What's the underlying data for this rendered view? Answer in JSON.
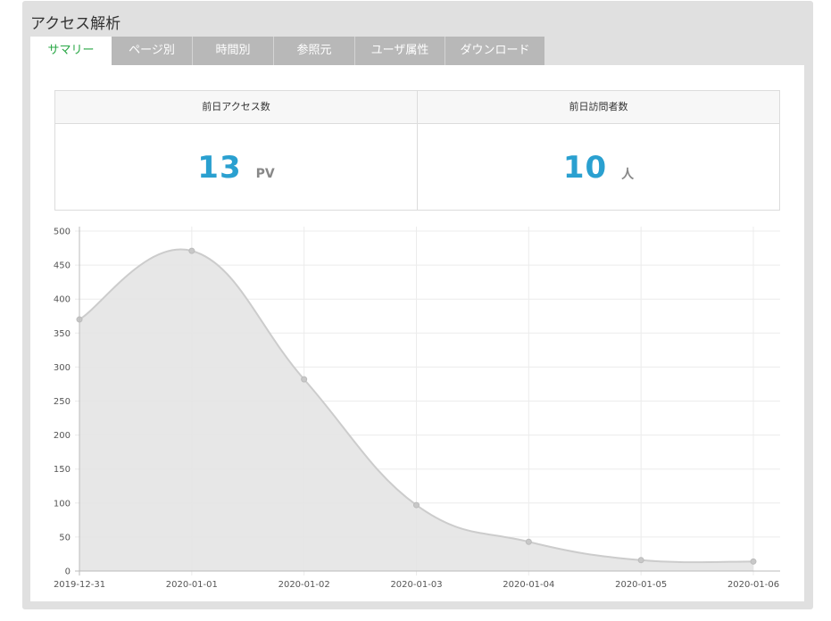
{
  "panel": {
    "title": "アクセス解析"
  },
  "tabs": [
    {
      "label": "サマリー",
      "active": true
    },
    {
      "label": "ページ別",
      "active": false
    },
    {
      "label": "時間別",
      "active": false
    },
    {
      "label": "参照元",
      "active": false
    },
    {
      "label": "ユーザ属性",
      "active": false
    },
    {
      "label": "ダウンロード",
      "active": false
    }
  ],
  "cards": [
    {
      "label": "前日アクセス数",
      "value": "13",
      "unit": "PV"
    },
    {
      "label": "前日訪問者数",
      "value": "10",
      "unit": "人"
    }
  ],
  "colors": {
    "accent_value": "#2aa0d0",
    "active_tab": "#28a745",
    "area_fill": "#e4e4e4",
    "area_stroke": "#cccccc"
  },
  "chart_data": {
    "type": "area",
    "x": [
      "2019-12-31",
      "2020-01-01",
      "2020-01-02",
      "2020-01-03",
      "2020-01-04",
      "2020-01-05",
      "2020-01-06"
    ],
    "series": [
      {
        "values": [
          370,
          471,
          282,
          97,
          43,
          16,
          14
        ]
      }
    ],
    "ylim": [
      0,
      500
    ],
    "yticks": [
      0,
      50,
      100,
      150,
      200,
      250,
      300,
      350,
      400,
      450,
      500
    ],
    "grid": true,
    "title": "",
    "xlabel": "",
    "ylabel": ""
  }
}
